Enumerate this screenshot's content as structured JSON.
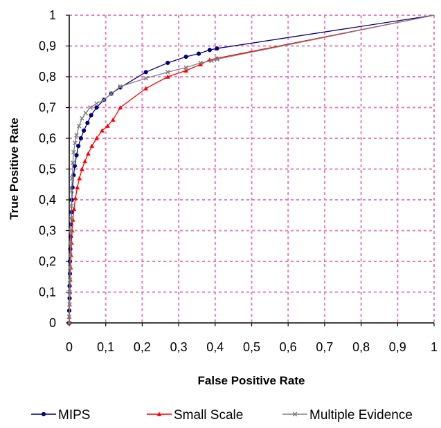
{
  "chart_data": {
    "type": "line",
    "title": "",
    "xlabel": "False Positive Rate",
    "ylabel": "True Positive Rate",
    "xlim": [
      0,
      1
    ],
    "ylim": [
      0,
      1
    ],
    "x_ticks": [
      "0",
      "0,1",
      "0,2",
      "0,3",
      "0,4",
      "0,5",
      "0,6",
      "0,7",
      "0,8",
      "0,9",
      "1"
    ],
    "y_ticks": [
      "0",
      "0,1",
      "0,2",
      "0,3",
      "0,4",
      "0,5",
      "0,6",
      "0,7",
      "0,8",
      "0,9",
      "1"
    ],
    "grid": true,
    "grid_color": "#e67ec0",
    "legend_position": "bottom",
    "series": [
      {
        "name": "MIPS",
        "color": "#000080",
        "marker": "circle",
        "points": [
          [
            0,
            0
          ],
          [
            0,
            0.04
          ],
          [
            0.001,
            0.08
          ],
          [
            0.001,
            0.12
          ],
          [
            0.002,
            0.16
          ],
          [
            0.002,
            0.2
          ],
          [
            0.003,
            0.24
          ],
          [
            0.004,
            0.28
          ],
          [
            0.005,
            0.32
          ],
          [
            0.006,
            0.36
          ],
          [
            0.007,
            0.4
          ],
          [
            0.009,
            0.44
          ],
          [
            0.012,
            0.48
          ],
          [
            0.015,
            0.51
          ],
          [
            0.02,
            0.545
          ],
          [
            0.025,
            0.575
          ],
          [
            0.032,
            0.6
          ],
          [
            0.04,
            0.625
          ],
          [
            0.05,
            0.65
          ],
          [
            0.06,
            0.675
          ],
          [
            0.075,
            0.7
          ],
          [
            0.095,
            0.725
          ],
          [
            0.115,
            0.745
          ],
          [
            0.14,
            0.765
          ],
          [
            0.21,
            0.815
          ],
          [
            0.27,
            0.845
          ],
          [
            0.32,
            0.865
          ],
          [
            0.355,
            0.875
          ],
          [
            0.385,
            0.887
          ],
          [
            0.405,
            0.892
          ],
          [
            1,
            1
          ]
        ]
      },
      {
        "name": "Small Scale",
        "color": "#ff0000",
        "marker": "triangle",
        "points": [
          [
            0,
            0
          ],
          [
            0,
            0.02
          ],
          [
            0.001,
            0.06
          ],
          [
            0.002,
            0.1
          ],
          [
            0.003,
            0.14
          ],
          [
            0.004,
            0.18
          ],
          [
            0.005,
            0.22
          ],
          [
            0.006,
            0.26
          ],
          [
            0.008,
            0.3
          ],
          [
            0.01,
            0.335
          ],
          [
            0.013,
            0.37
          ],
          [
            0.017,
            0.405
          ],
          [
            0.022,
            0.44
          ],
          [
            0.028,
            0.47
          ],
          [
            0.035,
            0.5
          ],
          [
            0.043,
            0.525
          ],
          [
            0.052,
            0.55
          ],
          [
            0.062,
            0.575
          ],
          [
            0.075,
            0.6
          ],
          [
            0.09,
            0.625
          ],
          [
            0.105,
            0.64
          ],
          [
            0.12,
            0.66
          ],
          [
            0.14,
            0.7
          ],
          [
            0.21,
            0.762
          ],
          [
            0.27,
            0.8
          ],
          [
            0.32,
            0.82
          ],
          [
            0.36,
            0.84
          ],
          [
            0.385,
            0.855
          ],
          [
            0.405,
            0.86
          ],
          [
            1,
            1
          ]
        ]
      },
      {
        "name": "Multiple Evidence",
        "color": "#808080",
        "marker": "x",
        "points": [
          [
            0,
            0
          ],
          [
            0,
            0.02
          ],
          [
            0.001,
            0.06
          ],
          [
            0.001,
            0.1
          ],
          [
            0.002,
            0.14
          ],
          [
            0.002,
            0.18
          ],
          [
            0.003,
            0.22
          ],
          [
            0.003,
            0.26
          ],
          [
            0.004,
            0.3
          ],
          [
            0.005,
            0.34
          ],
          [
            0.006,
            0.38
          ],
          [
            0.007,
            0.43
          ],
          [
            0.008,
            0.47
          ],
          [
            0.01,
            0.52
          ],
          [
            0.012,
            0.555
          ],
          [
            0.016,
            0.585
          ],
          [
            0.02,
            0.61
          ],
          [
            0.027,
            0.64
          ],
          [
            0.035,
            0.665
          ],
          [
            0.045,
            0.682
          ],
          [
            0.058,
            0.7
          ],
          [
            0.075,
            0.713
          ],
          [
            0.095,
            0.725
          ],
          [
            0.115,
            0.745
          ],
          [
            0.14,
            0.768
          ],
          [
            0.21,
            0.795
          ],
          [
            0.27,
            0.815
          ],
          [
            0.32,
            0.83
          ],
          [
            0.36,
            0.845
          ],
          [
            0.39,
            0.852
          ],
          [
            0.405,
            0.857
          ],
          [
            1,
            1
          ]
        ]
      }
    ]
  }
}
